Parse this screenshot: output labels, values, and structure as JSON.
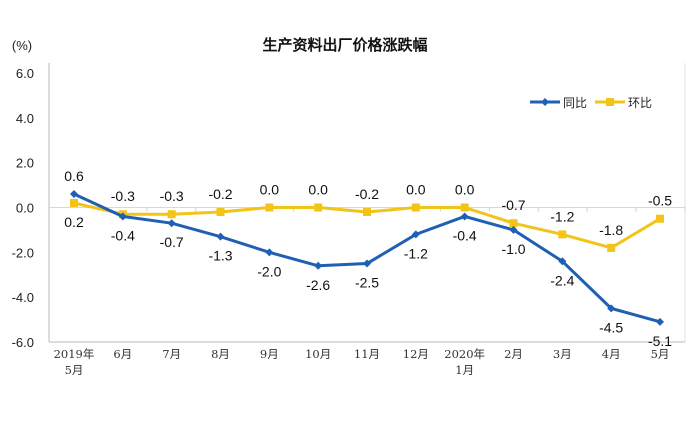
{
  "chart_data": {
    "type": "line",
    "title": "生产资料出厂价格涨跌幅",
    "ylabel": "(%)",
    "xlabel": "",
    "ylim": [
      -6.0,
      6.0
    ],
    "yticks": [
      "6.0",
      "4.0",
      "2.0",
      "0.0",
      "-2.0",
      "-4.0",
      "-6.0"
    ],
    "categories": [
      [
        "2019年",
        "5月"
      ],
      [
        "6月"
      ],
      [
        "7月"
      ],
      [
        "8月"
      ],
      [
        "9月"
      ],
      [
        "10月"
      ],
      [
        "11月"
      ],
      [
        "12月"
      ],
      [
        "2020年",
        "1月"
      ],
      [
        "2月"
      ],
      [
        "3月"
      ],
      [
        "4月"
      ],
      [
        "5月"
      ]
    ],
    "grid": false,
    "legend_position": "top-right",
    "series": [
      {
        "name": "同比",
        "color": "#1f5fb4",
        "marker": "diamond",
        "values": [
          0.6,
          -0.4,
          -0.7,
          -1.3,
          -2.0,
          -2.6,
          -2.5,
          -1.2,
          -0.4,
          -1.0,
          -2.4,
          -4.5,
          -5.1
        ],
        "labels": [
          "0.6",
          "-0.4",
          "-0.7",
          "-1.3",
          "-2.0",
          "-2.6",
          "-2.5",
          "-1.2",
          "-0.4",
          "-1.0",
          "-2.4",
          "-4.5",
          "-5.1"
        ]
      },
      {
        "name": "环比",
        "color": "#f2c418",
        "marker": "square",
        "values": [
          0.2,
          -0.3,
          -0.3,
          -0.2,
          0.0,
          0.0,
          -0.2,
          0.0,
          0.0,
          -0.7,
          -1.2,
          -1.8,
          -0.5
        ],
        "labels": [
          "0.2",
          "-0.3",
          "-0.3",
          "-0.2",
          "0.0",
          "0.0",
          "-0.2",
          "0.0",
          "0.0",
          "-0.7",
          "-1.2",
          "-1.8",
          "-0.5"
        ]
      }
    ]
  }
}
